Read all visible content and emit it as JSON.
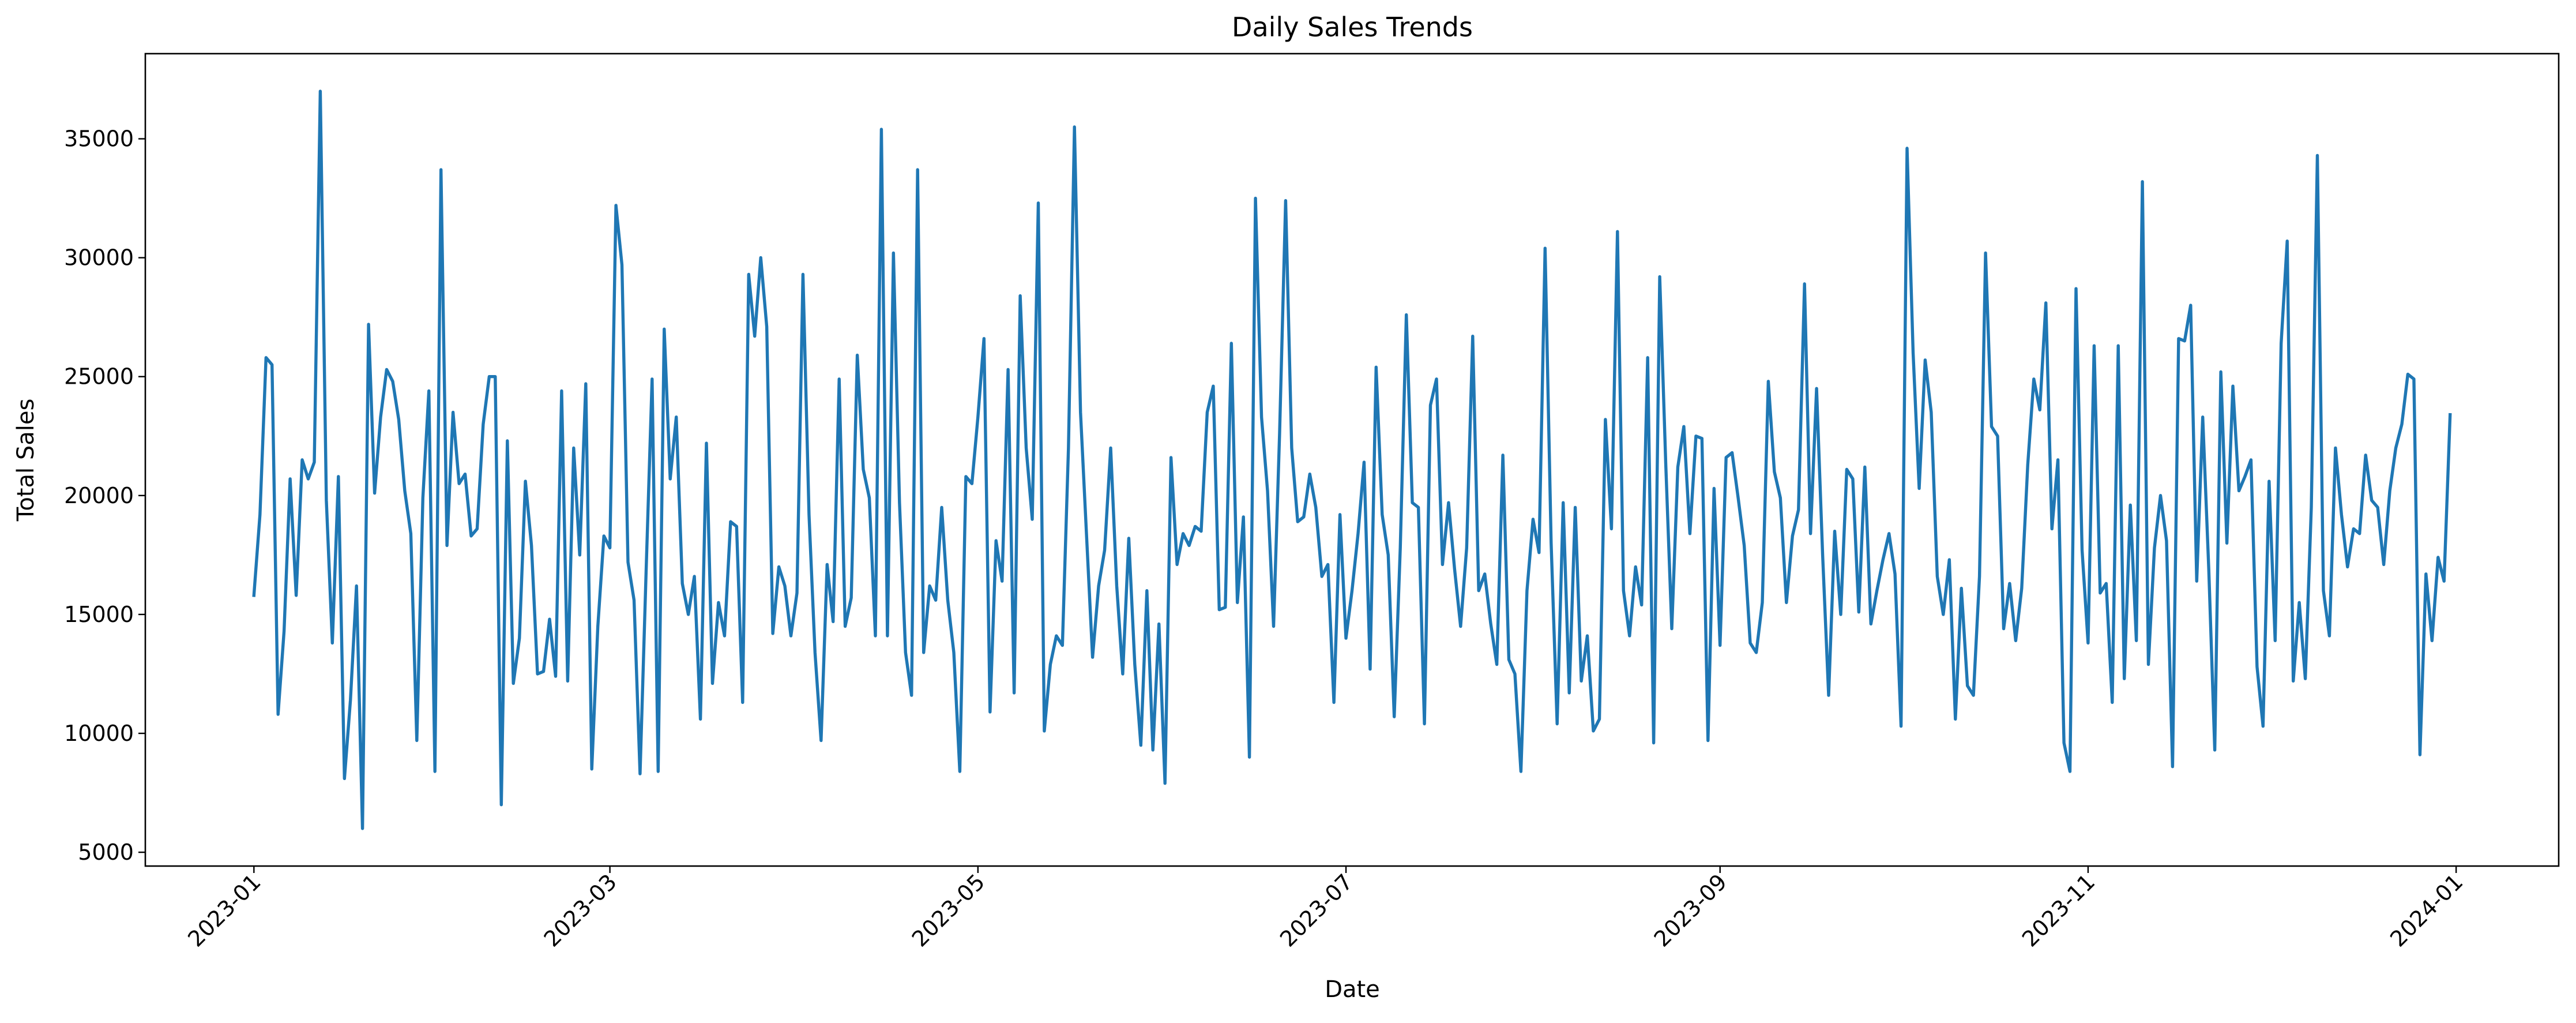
{
  "chart_data": {
    "type": "line",
    "title": "Daily Sales Trends",
    "xlabel": "Date",
    "ylabel": "Total Sales",
    "xlim": [
      "2022-12-14",
      "2024-01-18"
    ],
    "ylim": [
      4420,
      38580
    ],
    "x_ticks": [
      "2023-01",
      "2023-03",
      "2023-05",
      "2023-07",
      "2023-09",
      "2023-11",
      "2024-01"
    ],
    "y_ticks": [
      5000,
      10000,
      15000,
      20000,
      25000,
      30000,
      35000
    ],
    "grid": false,
    "legend": "none",
    "series": [
      {
        "color": "#1f77b4",
        "x_start": "2023-01-01",
        "x_end": "2023-12-31",
        "x_step": "1 day",
        "values": [
          15800,
          19200,
          25800,
          25500,
          10800,
          14300,
          20700,
          15800,
          21500,
          20700,
          21400,
          37000,
          19800,
          13800,
          20800,
          8100,
          11400,
          16200,
          6000,
          27200,
          20100,
          23300,
          25300,
          24800,
          23200,
          20200,
          18400,
          9700,
          19900,
          24400,
          8400,
          33700,
          17900,
          23500,
          20500,
          20900,
          18300,
          18600,
          23000,
          25000,
          25000,
          7000,
          22300,
          12100,
          14000,
          20600,
          17900,
          12500,
          12600,
          14800,
          12400,
          24400,
          12200,
          22000,
          17500,
          24700,
          8500,
          14500,
          18300,
          17800,
          32200,
          29700,
          17200,
          15600,
          8300,
          16800,
          24900,
          8400,
          27000,
          20700,
          23300,
          16300,
          15000,
          16600,
          10600,
          22200,
          12100,
          15500,
          14100,
          18900,
          18700,
          11300,
          29300,
          26700,
          30000,
          27100,
          14200,
          17000,
          16200,
          14100,
          15900,
          29300,
          19200,
          13400,
          9700,
          17100,
          14700,
          24900,
          14500,
          15700,
          25900,
          21100,
          19900,
          14100,
          35400,
          14100,
          30200,
          19700,
          13400,
          11600,
          33700,
          13400,
          16200,
          15600,
          19500,
          15600,
          13400,
          8400,
          20800,
          20500,
          23300,
          26600,
          10900,
          18100,
          16400,
          25300,
          11700,
          28400,
          22000,
          19000,
          32300,
          10100,
          12900,
          14100,
          13700,
          22000,
          35500,
          23500,
          18300,
          13200,
          16200,
          17700,
          22000,
          16200,
          12500,
          18200,
          12900,
          9500,
          16000,
          9300,
          14600,
          7900,
          21600,
          17100,
          18400,
          17900,
          18700,
          18500,
          23500,
          24600,
          15200,
          15300,
          26400,
          15500,
          19100,
          9000,
          32500,
          23300,
          20200,
          14500,
          22600,
          32400,
          22000,
          18900,
          19100,
          20900,
          19500,
          16600,
          17100,
          11300,
          19200,
          14000,
          16000,
          18400,
          21400,
          12700,
          25400,
          19200,
          17500,
          10700,
          17800,
          27600,
          19700,
          19500,
          10400,
          23800,
          24900,
          17100,
          19700,
          16900,
          14500,
          17800,
          26700,
          16000,
          16700,
          14600,
          12900,
          21700,
          13100,
          12500,
          8400,
          16000,
          19000,
          17600,
          30400,
          18000,
          10400,
          19700,
          11700,
          19500,
          12200,
          14100,
          10100,
          10600,
          23200,
          18600,
          31100,
          16000,
          14100,
          17000,
          15400,
          25800,
          9600,
          29200,
          21300,
          14400,
          21200,
          22900,
          18400,
          22500,
          22400,
          9700,
          20300,
          13700,
          21600,
          21800,
          19900,
          17900,
          13800,
          13400,
          15500,
          24800,
          21000,
          19900,
          15500,
          18300,
          19400,
          28900,
          18400,
          24500,
          17500,
          11600,
          18500,
          15000,
          21100,
          20700,
          15100,
          21200,
          14600,
          16000,
          17300,
          18400,
          16700,
          10300,
          34600,
          26000,
          20300,
          25700,
          23500,
          16600,
          15000,
          17300,
          10600,
          16100,
          12000,
          11600,
          16600,
          30200,
          22900,
          22500,
          14400,
          16300,
          13900,
          16100,
          21300,
          24900,
          23600,
          28100,
          18600,
          21500,
          9600,
          8400,
          28700,
          17700,
          13800,
          26300,
          15900,
          16300,
          11300,
          26300,
          12300,
          19600,
          13900,
          33200,
          12900,
          17800,
          20000,
          18100,
          8600,
          26600,
          26500,
          28000,
          16400,
          23300,
          16900,
          9300,
          25200,
          18000,
          24600,
          20200,
          20800,
          21500,
          12800,
          10300,
          20600,
          13900,
          26400,
          30700,
          12200,
          15500,
          12300,
          19500,
          34300,
          16000,
          14100,
          22000,
          19200,
          17000,
          18600,
          18400,
          21700,
          19800,
          19500,
          17100,
          20200,
          22000,
          23000,
          25100,
          24900,
          9100,
          16700,
          13900,
          17400,
          16400,
          23400
        ]
      }
    ]
  }
}
